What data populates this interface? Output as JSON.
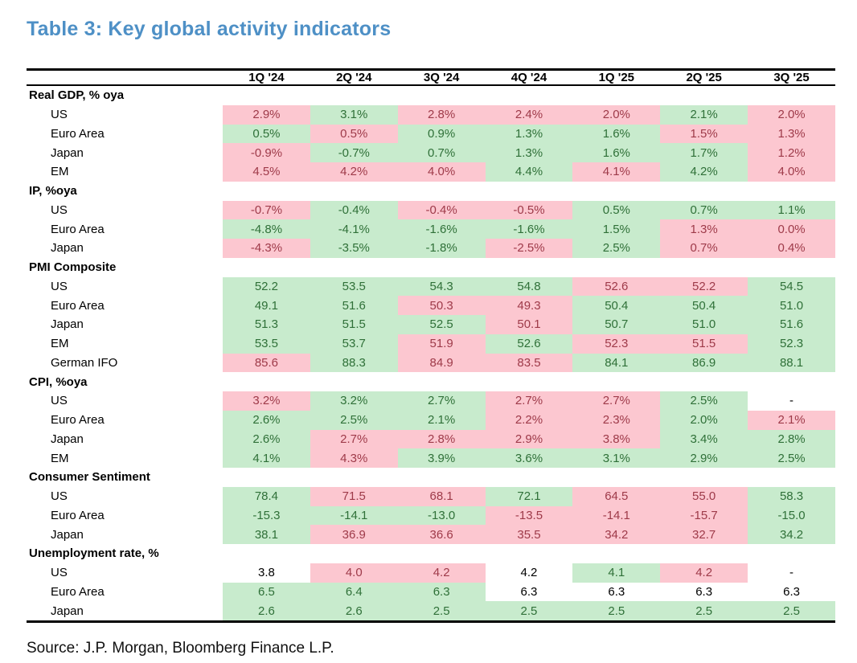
{
  "title": "Table 3: Key global activity indicators",
  "source": "Source: J.P. Morgan, Bloomberg Finance L.P.",
  "colors": {
    "title_blue": "#4E90C6",
    "good_bg": "#C8EBCD",
    "good_text": "#2F7038",
    "bad_bg": "#FCC7D0",
    "bad_text": "#9E3A49",
    "neutral_text": "#000000"
  },
  "chart_data": {
    "type": "table",
    "title": "Table 3: Key global activity indicators",
    "columns": [
      "1Q '24",
      "2Q '24",
      "3Q '24",
      "4Q '24",
      "1Q '25",
      "2Q '25",
      "3Q '25"
    ],
    "sections": [
      {
        "label": "Real GDP, % oya",
        "rows": [
          {
            "label": "US",
            "values": [
              "2.9%",
              "3.1%",
              "2.8%",
              "2.4%",
              "2.0%",
              "2.1%",
              "2.0%"
            ],
            "states": [
              "bad",
              "good",
              "bad",
              "bad",
              "bad",
              "good",
              "bad"
            ]
          },
          {
            "label": "Euro Area",
            "values": [
              "0.5%",
              "0.5%",
              "0.9%",
              "1.3%",
              "1.6%",
              "1.5%",
              "1.3%"
            ],
            "states": [
              "good",
              "bad",
              "good",
              "good",
              "good",
              "bad",
              "bad"
            ]
          },
          {
            "label": "Japan",
            "values": [
              "-0.9%",
              "-0.7%",
              "0.7%",
              "1.3%",
              "1.6%",
              "1.7%",
              "1.2%"
            ],
            "states": [
              "bad",
              "good",
              "good",
              "good",
              "good",
              "good",
              "bad"
            ]
          },
          {
            "label": "EM",
            "values": [
              "4.5%",
              "4.2%",
              "4.0%",
              "4.4%",
              "4.1%",
              "4.2%",
              "4.0%"
            ],
            "states": [
              "bad",
              "bad",
              "bad",
              "good",
              "bad",
              "good",
              "bad"
            ]
          }
        ]
      },
      {
        "label": "IP, %oya",
        "rows": [
          {
            "label": "US",
            "values": [
              "-0.7%",
              "-0.4%",
              "-0.4%",
              "-0.5%",
              "0.5%",
              "0.7%",
              "1.1%"
            ],
            "states": [
              "bad",
              "good",
              "bad",
              "bad",
              "good",
              "good",
              "good"
            ]
          },
          {
            "label": "Euro Area",
            "values": [
              "-4.8%",
              "-4.1%",
              "-1.6%",
              "-1.6%",
              "1.5%",
              "1.3%",
              "0.0%"
            ],
            "states": [
              "good",
              "good",
              "good",
              "good",
              "good",
              "bad",
              "bad"
            ]
          },
          {
            "label": "Japan",
            "values": [
              "-4.3%",
              "-3.5%",
              "-1.8%",
              "-2.5%",
              "2.5%",
              "0.7%",
              "0.4%"
            ],
            "states": [
              "bad",
              "good",
              "good",
              "bad",
              "good",
              "bad",
              "bad"
            ]
          }
        ]
      },
      {
        "label": "PMI Composite",
        "rows": [
          {
            "label": "US",
            "values": [
              "52.2",
              "53.5",
              "54.3",
              "54.8",
              "52.6",
              "52.2",
              "54.5"
            ],
            "states": [
              "good",
              "good",
              "good",
              "good",
              "bad",
              "bad",
              "good"
            ]
          },
          {
            "label": "Euro Area",
            "values": [
              "49.1",
              "51.6",
              "50.3",
              "49.3",
              "50.4",
              "50.4",
              "51.0"
            ],
            "states": [
              "good",
              "good",
              "bad",
              "bad",
              "good",
              "good",
              "good"
            ]
          },
          {
            "label": "Japan",
            "values": [
              "51.3",
              "51.5",
              "52.5",
              "50.1",
              "50.7",
              "51.0",
              "51.6"
            ],
            "states": [
              "good",
              "good",
              "good",
              "bad",
              "good",
              "good",
              "good"
            ]
          },
          {
            "label": "EM",
            "values": [
              "53.5",
              "53.7",
              "51.9",
              "52.6",
              "52.3",
              "51.5",
              "52.3"
            ],
            "states": [
              "good",
              "good",
              "bad",
              "good",
              "bad",
              "bad",
              "good"
            ]
          },
          {
            "label": "German IFO",
            "values": [
              "85.6",
              "88.3",
              "84.9",
              "83.5",
              "84.1",
              "86.9",
              "88.1"
            ],
            "states": [
              "bad",
              "good",
              "bad",
              "bad",
              "good",
              "good",
              "good"
            ]
          }
        ]
      },
      {
        "label": "CPI, %oya",
        "rows": [
          {
            "label": "US",
            "values": [
              "3.2%",
              "3.2%",
              "2.7%",
              "2.7%",
              "2.7%",
              "2.5%",
              "-"
            ],
            "states": [
              "bad",
              "good",
              "good",
              "bad",
              "bad",
              "good",
              "none"
            ]
          },
          {
            "label": "Euro Area",
            "values": [
              "2.6%",
              "2.5%",
              "2.1%",
              "2.2%",
              "2.3%",
              "2.0%",
              "2.1%"
            ],
            "states": [
              "good",
              "good",
              "good",
              "bad",
              "bad",
              "good",
              "bad"
            ]
          },
          {
            "label": "Japan",
            "values": [
              "2.6%",
              "2.7%",
              "2.8%",
              "2.9%",
              "3.8%",
              "3.4%",
              "2.8%"
            ],
            "states": [
              "good",
              "bad",
              "bad",
              "bad",
              "bad",
              "good",
              "good"
            ]
          },
          {
            "label": "EM",
            "values": [
              "4.1%",
              "4.3%",
              "3.9%",
              "3.6%",
              "3.1%",
              "2.9%",
              "2.5%"
            ],
            "states": [
              "good",
              "bad",
              "good",
              "good",
              "good",
              "good",
              "good"
            ]
          }
        ]
      },
      {
        "label": "Consumer Sentiment",
        "rows": [
          {
            "label": "US",
            "values": [
              "78.4",
              "71.5",
              "68.1",
              "72.1",
              "64.5",
              "55.0",
              "58.3"
            ],
            "states": [
              "good",
              "bad",
              "bad",
              "good",
              "bad",
              "bad",
              "good"
            ]
          },
          {
            "label": "Euro Area",
            "values": [
              "-15.3",
              "-14.1",
              "-13.0",
              "-13.5",
              "-14.1",
              "-15.7",
              "-15.0"
            ],
            "states": [
              "good",
              "good",
              "good",
              "bad",
              "bad",
              "bad",
              "good"
            ]
          },
          {
            "label": "Japan",
            "values": [
              "38.1",
              "36.9",
              "36.6",
              "35.5",
              "34.2",
              "32.7",
              "34.2"
            ],
            "states": [
              "good",
              "bad",
              "bad",
              "bad",
              "bad",
              "bad",
              "good"
            ]
          }
        ]
      },
      {
        "label": "Unemployment rate, %",
        "rows": [
          {
            "label": "US",
            "values": [
              "3.8",
              "4.0",
              "4.2",
              "4.2",
              "4.1",
              "4.2",
              "-"
            ],
            "states": [
              "none",
              "bad",
              "bad",
              "none",
              "good",
              "bad",
              "none"
            ]
          },
          {
            "label": "Euro Area",
            "values": [
              "6.5",
              "6.4",
              "6.3",
              "6.3",
              "6.3",
              "6.3",
              "6.3"
            ],
            "states": [
              "good",
              "good",
              "good",
              "none",
              "none",
              "none",
              "none"
            ]
          },
          {
            "label": "Japan",
            "values": [
              "2.6",
              "2.6",
              "2.5",
              "2.5",
              "2.5",
              "2.5",
              "2.5"
            ],
            "states": [
              "good",
              "good",
              "good",
              "good",
              "good",
              "good",
              "good"
            ]
          }
        ]
      }
    ]
  }
}
